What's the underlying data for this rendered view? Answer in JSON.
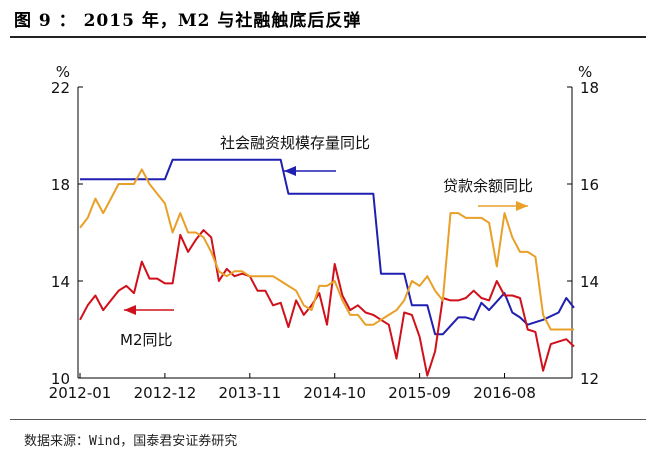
{
  "title": "图 9 ： 2015 年，M2 与社融触底后反弹",
  "source": "数据来源：Wind，国泰君安证券研究",
  "chart_data": {
    "type": "line",
    "categories": [
      "2012-01",
      "2012-12",
      "2013-11",
      "2014-10",
      "2015-09",
      "2016-08"
    ],
    "left_axis": {
      "unit": "%",
      "ylim": [
        10,
        22
      ],
      "ticks": [
        10,
        14,
        18,
        22
      ]
    },
    "right_axis": {
      "unit": "%",
      "ylim": [
        12,
        18
      ],
      "ticks": [
        12,
        14,
        16,
        18
      ]
    },
    "annotations": [
      {
        "text": "社会融资规模存量同比",
        "series": "social_financing"
      },
      {
        "text": "贷款余额同比",
        "series": "loans"
      },
      {
        "text": "M2同比",
        "series": "m2"
      }
    ],
    "series": [
      {
        "name": "社会融资规模存量同比",
        "key": "social_financing",
        "axis": "left",
        "color": "#1f1fb0",
        "x": [
          0,
          11,
          12,
          26,
          27,
          38,
          39,
          42,
          43,
          45,
          46,
          47,
          49,
          50,
          51,
          52,
          53,
          55,
          56,
          57,
          58,
          59,
          60,
          62,
          63,
          64
        ],
        "values": [
          18.2,
          18.2,
          19.0,
          19.0,
          17.6,
          17.6,
          14.3,
          14.3,
          13.0,
          13.0,
          11.8,
          11.8,
          12.5,
          12.5,
          12.4,
          13.1,
          12.8,
          13.5,
          12.7,
          12.5,
          12.2,
          12.3,
          12.4,
          12.7,
          13.3,
          12.9
        ]
      },
      {
        "name": "M2同比",
        "key": "m2",
        "axis": "left",
        "color": "#d0101a",
        "x": [
          0,
          1,
          2,
          3,
          4,
          5,
          6,
          7,
          8,
          9,
          10,
          11,
          12,
          13,
          14,
          15,
          16,
          17,
          18,
          19,
          20,
          21,
          22,
          23,
          24,
          25,
          26,
          27,
          28,
          29,
          30,
          31,
          32,
          33,
          34,
          35,
          36,
          37,
          38,
          39,
          40,
          41,
          42,
          43,
          44,
          45,
          46,
          47,
          48,
          49,
          50,
          51,
          52,
          53,
          54,
          55,
          56,
          57,
          58,
          59,
          60,
          61,
          62,
          63,
          64
        ],
        "values": [
          12.4,
          13.0,
          13.4,
          12.8,
          13.2,
          13.6,
          13.8,
          13.5,
          14.8,
          14.1,
          14.1,
          13.9,
          13.9,
          15.9,
          15.2,
          15.7,
          16.1,
          15.8,
          14.0,
          14.5,
          14.2,
          14.3,
          14.2,
          13.6,
          13.6,
          13.0,
          13.1,
          12.1,
          13.2,
          12.6,
          13.0,
          13.5,
          12.2,
          14.7,
          13.4,
          12.8,
          13.0,
          12.7,
          12.6,
          12.4,
          12.2,
          10.8,
          12.7,
          12.6,
          11.7,
          10.1,
          11.1,
          13.3,
          13.2,
          13.2,
          13.3,
          13.6,
          13.3,
          13.2,
          14.0,
          13.4,
          13.4,
          13.3,
          12.0,
          11.9,
          10.3,
          11.4,
          11.5,
          11.6,
          11.3
        ]
      },
      {
        "name": "贷款余额同比",
        "key": "loans",
        "axis": "right",
        "color": "#e8a028",
        "x": [
          0,
          1,
          2,
          3,
          4,
          5,
          6,
          7,
          8,
          9,
          10,
          11,
          12,
          13,
          14,
          15,
          16,
          17,
          18,
          19,
          20,
          21,
          22,
          23,
          24,
          25,
          26,
          27,
          28,
          29,
          30,
          31,
          32,
          33,
          34,
          35,
          36,
          37,
          38,
          39,
          40,
          41,
          42,
          43,
          44,
          45,
          46,
          47,
          48,
          49,
          50,
          51,
          52,
          53,
          54,
          55,
          56,
          57,
          58,
          59,
          60,
          61,
          62,
          63,
          64
        ],
        "values": [
          15.1,
          15.3,
          15.7,
          15.4,
          15.7,
          16.0,
          16.0,
          16.0,
          16.3,
          16.0,
          15.8,
          15.6,
          15.0,
          15.4,
          15.0,
          15.0,
          14.9,
          14.6,
          14.2,
          14.1,
          14.2,
          14.2,
          14.1,
          14.1,
          14.1,
          14.1,
          14.0,
          13.9,
          13.8,
          13.5,
          13.4,
          13.9,
          13.9,
          14.0,
          13.6,
          13.3,
          13.3,
          13.1,
          13.1,
          13.2,
          13.3,
          13.4,
          13.6,
          14.0,
          13.9,
          14.1,
          13.8,
          13.6,
          15.4,
          15.4,
          15.3,
          15.3,
          15.3,
          15.2,
          14.3,
          15.4,
          14.9,
          14.6,
          14.6,
          14.5,
          13.3,
          13.0,
          13.0,
          13.0,
          13.0
        ]
      }
    ]
  }
}
